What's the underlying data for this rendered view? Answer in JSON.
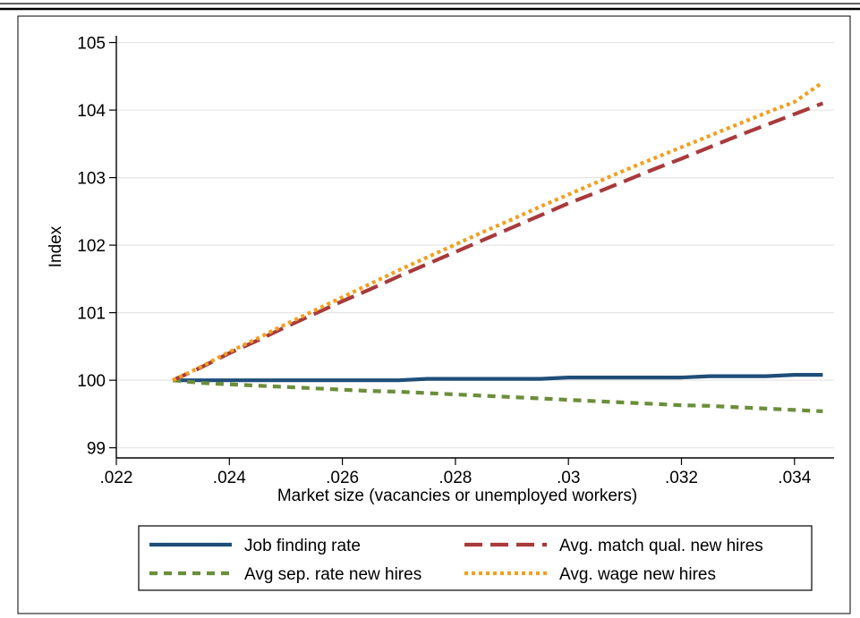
{
  "chart_data": {
    "type": "line",
    "title": "",
    "xlabel": "Market size (vacancies or unemployed workers)",
    "ylabel": "Index",
    "xlim": [
      0.022,
      0.0347
    ],
    "ylim": [
      98.85,
      105.1
    ],
    "xticks": [
      0.022,
      0.024,
      0.026,
      0.028,
      0.03,
      0.032,
      0.034
    ],
    "xtick_labels": [
      ".022",
      ".024",
      ".026",
      ".028",
      ".03",
      ".032",
      ".034"
    ],
    "yticks": [
      99,
      100,
      101,
      102,
      103,
      104,
      105
    ],
    "ytick_labels": [
      "99",
      "100",
      "101",
      "102",
      "103",
      "104",
      "105"
    ],
    "grid": "horizontal",
    "legend_position": "bottom",
    "series": [
      {
        "name": "Job finding rate",
        "color": "#1f4e79",
        "style": "solid",
        "x": [
          0.023,
          0.0235,
          0.024,
          0.0245,
          0.025,
          0.0255,
          0.026,
          0.0265,
          0.027,
          0.0275,
          0.028,
          0.0285,
          0.029,
          0.0295,
          0.03,
          0.0305,
          0.031,
          0.0315,
          0.032,
          0.0325,
          0.033,
          0.0335,
          0.034,
          0.0345
        ],
        "values": [
          100.0,
          100.0,
          100.0,
          100.0,
          100.0,
          100.0,
          100.0,
          100.0,
          100.0,
          100.02,
          100.02,
          100.02,
          100.02,
          100.02,
          100.04,
          100.04,
          100.04,
          100.04,
          100.04,
          100.06,
          100.06,
          100.06,
          100.08,
          100.08
        ]
      },
      {
        "name": "Avg sep. rate new hires",
        "color": "#6b8e3a",
        "style": "dashed",
        "x": [
          0.023,
          0.0235,
          0.024,
          0.0245,
          0.025,
          0.0255,
          0.026,
          0.0265,
          0.027,
          0.0275,
          0.028,
          0.0285,
          0.029,
          0.0295,
          0.03,
          0.0305,
          0.031,
          0.0315,
          0.032,
          0.0325,
          0.033,
          0.0335,
          0.034,
          0.0345
        ],
        "values": [
          100.0,
          99.96,
          99.94,
          99.92,
          99.9,
          99.88,
          99.86,
          99.84,
          99.83,
          99.81,
          99.79,
          99.77,
          99.75,
          99.73,
          99.71,
          99.69,
          99.67,
          99.65,
          99.63,
          99.62,
          99.6,
          99.58,
          99.56,
          99.54
        ]
      },
      {
        "name": "Avg. match qual. new hires",
        "color": "#a83a3c",
        "style": "longdash",
        "x": [
          0.023,
          0.0235,
          0.024,
          0.0245,
          0.025,
          0.0255,
          0.026,
          0.0265,
          0.027,
          0.0275,
          0.028,
          0.0285,
          0.029,
          0.0295,
          0.03,
          0.0305,
          0.031,
          0.0315,
          0.032,
          0.0325,
          0.033,
          0.0335,
          0.034,
          0.0345
        ],
        "values": [
          100.0,
          100.19,
          100.4,
          100.59,
          100.79,
          100.98,
          101.17,
          101.35,
          101.54,
          101.72,
          101.9,
          102.08,
          102.26,
          102.44,
          102.62,
          102.78,
          102.95,
          103.12,
          103.28,
          103.45,
          103.62,
          103.78,
          103.94,
          104.1
        ]
      },
      {
        "name": "Avg. wage new hires",
        "color": "#f0a020",
        "style": "dotted",
        "x": [
          0.023,
          0.0235,
          0.024,
          0.0245,
          0.025,
          0.0255,
          0.026,
          0.0265,
          0.027,
          0.0275,
          0.028,
          0.0285,
          0.029,
          0.0295,
          0.03,
          0.0305,
          0.031,
          0.0315,
          0.032,
          0.0325,
          0.033,
          0.0335,
          0.034,
          0.0345
        ],
        "values": [
          100.0,
          100.2,
          100.42,
          100.62,
          100.83,
          101.03,
          101.23,
          101.43,
          101.63,
          101.82,
          102.01,
          102.2,
          102.38,
          102.57,
          102.75,
          102.93,
          103.11,
          103.28,
          103.45,
          103.62,
          103.79,
          103.96,
          104.12,
          104.41
        ]
      }
    ],
    "legend_order": [
      0,
      2,
      1,
      3
    ]
  }
}
